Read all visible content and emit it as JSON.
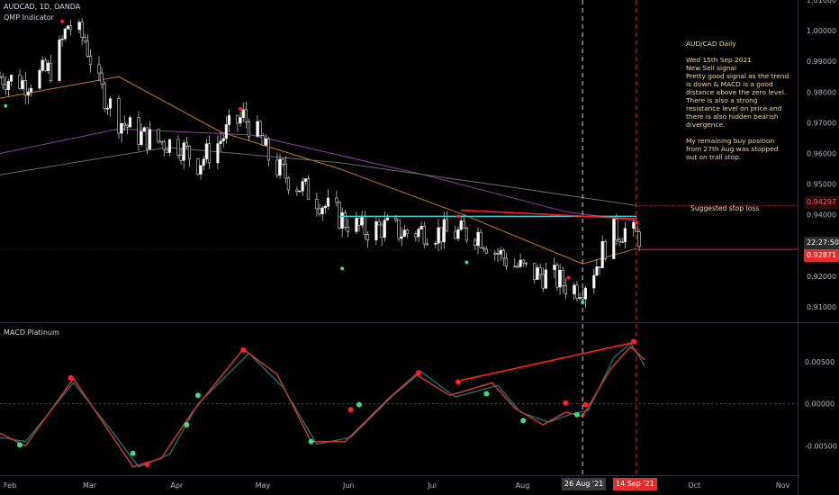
{
  "header": {
    "symbol": "AUDCAD, 1D, OANDA",
    "indicator": "QMP Indicator",
    "macd_name": "MACD Platinum"
  },
  "annotation": {
    "title": "AUD/CAD Daily",
    "body": "Wed 15th Sep 2021\nNew Sell signal\nPretty good signal as the trend is down & MACD is a good distance above the zero level. There is also a strong resistance level on price and there is also hidden bearish divergence.",
    "footer": "My remaining buy position from 27th Aug was stopped out on trall stop.",
    "stop_loss_label": "Suggested stop loss"
  },
  "price_axis": {
    "ticks": [
      "1.01000",
      "1.00000",
      "0.99000",
      "0.98000",
      "0.97000",
      "0.96000",
      "0.95000",
      "0.94000",
      "0.93000",
      "0.92000",
      "0.91000"
    ],
    "stop_loss_value": "0.94297",
    "time_label": "22:27:50",
    "current_price": "0.92871"
  },
  "macd_axis": {
    "ticks": [
      "0.00500",
      "0.00000",
      "-0.00500"
    ]
  },
  "time_axis": {
    "months": [
      "Feb",
      "Mar",
      "Apr",
      "May",
      "Jun",
      "Jul",
      "Aug",
      "Oct",
      "Nov"
    ],
    "marker_left": "26 Aug '21",
    "marker_right": "14 Sep '21"
  },
  "colors": {
    "background": "#000000",
    "up_candle": "#ffffff",
    "down_candle": "#000000",
    "ma_orange": "#c77a18",
    "ma_purple": "#8c3fa3",
    "ma_gray": "#6b6b6b",
    "resistance": "#2fd3d3",
    "signal_red": "#ff2020",
    "signal_green": "#3ddc84",
    "macd_line": "#c0392b",
    "signal_line": "#1f8a8a",
    "price_tag": "#e22d2d"
  },
  "chart_data": [
    {
      "type": "candlestick",
      "title": "AUDCAD, 1D, OANDA",
      "x_range": [
        "2021-02-01",
        "2021-11-10"
      ],
      "ylim": [
        0.905,
        1.01
      ],
      "grid": false,
      "price_path": [
        [
          "2021-02-01",
          0.985
        ],
        [
          "2021-02-10",
          0.983
        ],
        [
          "2021-02-20",
          0.988
        ],
        [
          "2021-02-25",
          1.002
        ],
        [
          "2021-03-03",
          0.997
        ],
        [
          "2021-03-08",
          0.982
        ],
        [
          "2021-03-15",
          0.971
        ],
        [
          "2021-03-22",
          0.966
        ],
        [
          "2021-03-29",
          0.964
        ],
        [
          "2021-04-05",
          0.963
        ],
        [
          "2021-04-12",
          0.957
        ],
        [
          "2021-04-18",
          0.962
        ],
        [
          "2021-04-23",
          0.968
        ],
        [
          "2021-04-28",
          0.972
        ],
        [
          "2021-05-03",
          0.966
        ],
        [
          "2021-05-08",
          0.957
        ],
        [
          "2021-05-15",
          0.951
        ],
        [
          "2021-05-22",
          0.947
        ],
        [
          "2021-05-28",
          0.942
        ],
        [
          "2021-06-03",
          0.938
        ],
        [
          "2021-06-10",
          0.935
        ],
        [
          "2021-06-17",
          0.936
        ],
        [
          "2021-06-24",
          0.934
        ],
        [
          "2021-07-01",
          0.935
        ],
        [
          "2021-07-08",
          0.934
        ],
        [
          "2021-07-14",
          0.934
        ],
        [
          "2021-07-20",
          0.934
        ],
        [
          "2021-07-25",
          0.929
        ],
        [
          "2021-08-01",
          0.924
        ],
        [
          "2021-08-08",
          0.921
        ],
        [
          "2021-08-15",
          0.92
        ],
        [
          "2021-08-22",
          0.916
        ],
        [
          "2021-08-26",
          0.917
        ],
        [
          "2021-08-31",
          0.924
        ],
        [
          "2021-09-05",
          0.934
        ],
        [
          "2021-09-10",
          0.935
        ],
        [
          "2021-09-14",
          0.933
        ]
      ],
      "moving_averages": [
        {
          "color": "orange",
          "values": [
            [
              "2021-02-01",
              0.978
            ],
            [
              "2021-03-15",
              0.985
            ],
            [
              "2021-04-20",
              0.967
            ],
            [
              "2021-06-01",
              0.955
            ],
            [
              "2021-07-15",
              0.94
            ],
            [
              "2021-08-26",
              0.924
            ],
            [
              "2021-09-14",
              0.929
            ]
          ]
        },
        {
          "color": "purple",
          "values": [
            [
              "2021-02-01",
              0.96
            ],
            [
              "2021-03-15",
              0.968
            ],
            [
              "2021-05-01",
              0.966
            ],
            [
              "2021-07-01",
              0.953
            ],
            [
              "2021-08-20",
              0.941
            ],
            [
              "2021-09-14",
              0.938
            ]
          ]
        },
        {
          "color": "gray",
          "values": [
            [
              "2021-02-01",
              0.953
            ],
            [
              "2021-04-01",
              0.962
            ],
            [
              "2021-06-01",
              0.957
            ],
            [
              "2021-08-01",
              0.949
            ],
            [
              "2021-09-14",
              0.943
            ]
          ]
        }
      ],
      "resistance_line": {
        "from": "2021-06-01",
        "to": "2021-09-14",
        "value": 0.9395
      },
      "divergence_line": {
        "from": "2021-07-14",
        "to": "2021-09-14",
        "start": 0.9415,
        "end": 0.9387
      },
      "stop_loss": 0.94297,
      "current_price": 0.92871,
      "sell_signals": [
        [
          "2021-02-23",
          1.003
        ],
        [
          "2021-04-27",
          0.9745
        ],
        [
          "2021-07-13",
          0.9395
        ],
        [
          "2021-08-21",
          0.9195
        ],
        [
          "2021-09-14",
          0.9375
        ]
      ],
      "buy_signals": [
        [
          "2021-02-03",
          0.9755
        ],
        [
          "2021-06-02",
          0.9225
        ],
        [
          "2021-07-16",
          0.9245
        ],
        [
          "2021-08-26",
          0.9115
        ]
      ]
    },
    {
      "type": "line",
      "title": "MACD Platinum",
      "x_range": [
        "2021-02-01",
        "2021-11-10"
      ],
      "ylim": [
        -0.0085,
        0.0095
      ],
      "series": [
        {
          "color": "red",
          "values": [
            [
              "2021-02-01",
              -0.0035
            ],
            [
              "2021-02-10",
              -0.005
            ],
            [
              "2021-02-27",
              0.003
            ],
            [
              "2021-03-10",
              -0.0025
            ],
            [
              "2021-03-20",
              -0.0075
            ],
            [
              "2021-03-30",
              -0.0065
            ],
            [
              "2021-04-10",
              -0.001
            ],
            [
              "2021-04-28",
              0.0065
            ],
            [
              "2021-05-10",
              0.0035
            ],
            [
              "2021-05-22",
              -0.0045
            ],
            [
              "2021-06-03",
              -0.0045
            ],
            [
              "2021-06-18",
              0.0005
            ],
            [
              "2021-06-28",
              0.0035
            ],
            [
              "2021-07-10",
              0.001
            ],
            [
              "2021-07-25",
              0.0025
            ],
            [
              "2021-08-02",
              -0.0005
            ],
            [
              "2021-08-12",
              -0.0025
            ],
            [
              "2021-08-20",
              -0.001
            ],
            [
              "2021-08-26",
              -0.0015
            ],
            [
              "2021-09-05",
              0.0042
            ],
            [
              "2021-09-12",
              0.0068
            ],
            [
              "2021-09-17",
              0.0052
            ]
          ]
        },
        {
          "color": "teal",
          "values": [
            [
              "2021-02-01",
              -0.004
            ],
            [
              "2021-02-10",
              -0.0045
            ],
            [
              "2021-02-27",
              0.0025
            ],
            [
              "2021-03-12",
              -0.003
            ],
            [
              "2021-03-22",
              -0.0075
            ],
            [
              "2021-04-02",
              -0.006
            ],
            [
              "2021-04-12",
              0.0
            ],
            [
              "2021-04-30",
              0.006
            ],
            [
              "2021-05-12",
              0.002
            ],
            [
              "2021-05-24",
              -0.0048
            ],
            [
              "2021-06-05",
              -0.004
            ],
            [
              "2021-06-20",
              0.001
            ],
            [
              "2021-06-30",
              0.0038
            ],
            [
              "2021-07-12",
              0.0008
            ],
            [
              "2021-07-27",
              0.0022
            ],
            [
              "2021-08-04",
              -0.001
            ],
            [
              "2021-08-14",
              -0.0022
            ],
            [
              "2021-08-22",
              -0.0012
            ],
            [
              "2021-08-28",
              -0.0008
            ],
            [
              "2021-09-06",
              0.0055
            ],
            [
              "2021-09-12",
              0.0072
            ],
            [
              "2021-09-17",
              0.0045
            ]
          ]
        }
      ],
      "divergence_line": {
        "from": "2021-07-14",
        "to": "2021-09-13",
        "start": 0.0028,
        "end": 0.0073
      },
      "sell_points": [
        [
          "2021-02-26",
          0.0031
        ],
        [
          "2021-04-28",
          0.0064
        ],
        [
          "2021-06-29",
          0.0037
        ],
        [
          "2021-07-13",
          0.0026
        ],
        [
          "2021-06-05",
          -0.0007
        ],
        [
          "2021-03-25",
          -0.0072
        ],
        [
          "2021-08-27",
          -0.0001
        ],
        [
          "2021-08-20",
          0.0001
        ],
        [
          "2021-09-13",
          0.0074
        ]
      ],
      "buy_points": [
        [
          "2021-02-08",
          -0.0049
        ],
        [
          "2021-03-20",
          -0.0059
        ],
        [
          "2021-04-08",
          -0.0025
        ],
        [
          "2021-04-12",
          0.001
        ],
        [
          "2021-05-22",
          -0.0045
        ],
        [
          "2021-06-08",
          -0.0001
        ],
        [
          "2021-07-23",
          0.0012
        ],
        [
          "2021-08-05",
          -0.002
        ],
        [
          "2021-08-24",
          -0.0013
        ]
      ]
    }
  ]
}
